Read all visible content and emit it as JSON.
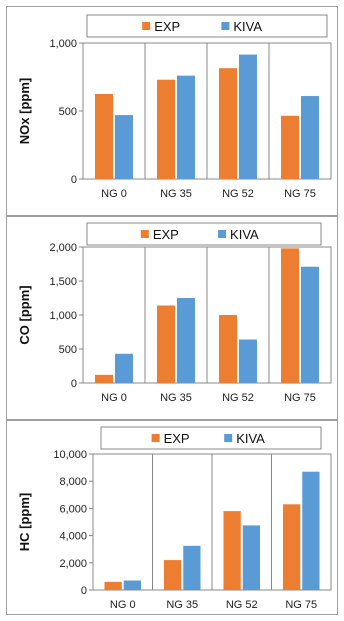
{
  "colors": {
    "exp": "#ED7D31",
    "kiva": "#5B9BD5"
  },
  "chart_data": [
    {
      "type": "bar",
      "categories": [
        "NG 0",
        "NG 35",
        "NG 52",
        "NG 75"
      ],
      "series": [
        {
          "name": "EXP",
          "values": [
            625,
            730,
            815,
            465
          ]
        },
        {
          "name": "KIVA",
          "values": [
            470,
            760,
            915,
            610
          ]
        }
      ],
      "ylabel": "NOx [ppm]",
      "ylim": [
        0,
        1000
      ],
      "yticks": [
        "0",
        "500",
        "1,000"
      ],
      "ytick_values": [
        0,
        500,
        1000
      ],
      "legend": "top",
      "grid": "vertical category dividers"
    },
    {
      "type": "bar",
      "categories": [
        "NG 0",
        "NG 35",
        "NG 52",
        "NG 75"
      ],
      "series": [
        {
          "name": "EXP",
          "values": [
            120,
            1140,
            1000,
            1980
          ]
        },
        {
          "name": "KIVA",
          "values": [
            430,
            1250,
            640,
            1710
          ]
        }
      ],
      "ylabel": "CO [ppm]",
      "ylim": [
        0,
        2000
      ],
      "yticks": [
        "0",
        "500",
        "1,000",
        "1,500",
        "2,000"
      ],
      "ytick_values": [
        0,
        500,
        1000,
        1500,
        2000
      ],
      "legend": "top",
      "grid": "vertical category dividers"
    },
    {
      "type": "bar",
      "categories": [
        "NG 0",
        "NG 35",
        "NG 52",
        "NG 75"
      ],
      "series": [
        {
          "name": "EXP",
          "values": [
            600,
            2200,
            5800,
            6300
          ]
        },
        {
          "name": "KIVA",
          "values": [
            700,
            3250,
            4750,
            8700
          ]
        }
      ],
      "ylabel": "HC [ppm]",
      "ylim": [
        0,
        10000
      ],
      "yticks": [
        "0",
        "2,000",
        "4,000",
        "6,000",
        "8,000",
        "10,000"
      ],
      "ytick_values": [
        0,
        2000,
        4000,
        6000,
        8000,
        10000
      ],
      "legend": "top",
      "grid": "vertical category dividers"
    }
  ]
}
